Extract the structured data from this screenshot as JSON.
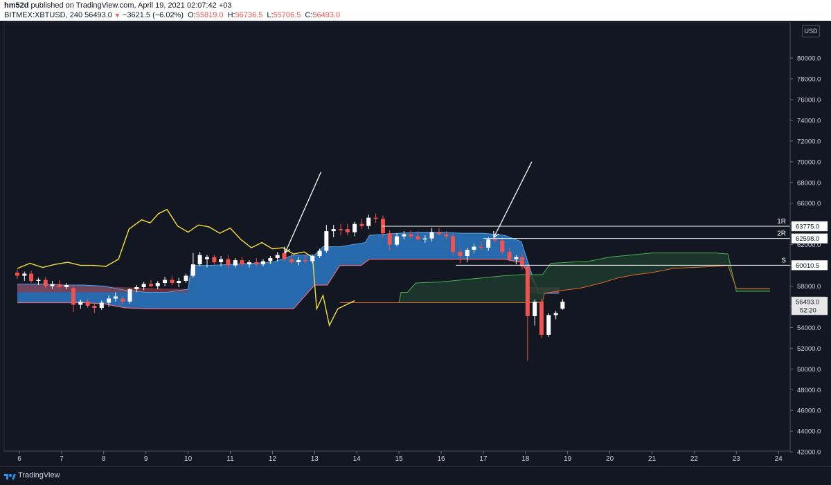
{
  "header": {
    "author": "hm52d",
    "published": " published on TradingView.com, April 19, 2021 02:07:42 +03",
    "symbol": "BITMEX:XBTUSD, 240",
    "last": "56493.0",
    "change": "−3621.5 (−6.02%)",
    "o_label": "O:",
    "o_val": "55819.0",
    "h_label": "H:",
    "h_val": "56736.5",
    "l_label": "L:",
    "l_val": "55706.5",
    "c_label": "C:",
    "c_val": "56493.0"
  },
  "footer": {
    "brand": "TradingView"
  },
  "axis": {
    "currency": "USD"
  },
  "colors": {
    "up": "#ffffff",
    "down": "#ef5350",
    "chikou": "#f5e040",
    "kumo_bull": "#2a78c4",
    "kumo_bear": "#8b3a44",
    "senkou_a": "#4caf50",
    "senkou_b": "#e0692a",
    "kijun_pink": "#e86a7a",
    "arrow": "#ffffff"
  },
  "chart_data": {
    "type": "candlestick",
    "y_ticks": [
      42000,
      44000,
      46000,
      48000,
      50000,
      52000,
      54000,
      56000,
      58000,
      60000,
      62000,
      64000,
      66000,
      68000,
      70000,
      72000,
      74000,
      76000,
      78000,
      80000
    ],
    "x_ticks": [
      {
        "label": "6",
        "day": 6
      },
      {
        "label": "7",
        "day": 7
      },
      {
        "label": "8",
        "day": 8
      },
      {
        "label": "9",
        "day": 9
      },
      {
        "label": "10",
        "day": 10
      },
      {
        "label": "11",
        "day": 11
      },
      {
        "label": "12",
        "day": 12
      },
      {
        "label": "13",
        "day": 13
      },
      {
        "label": "14",
        "day": 14
      },
      {
        "label": "15",
        "day": 15
      },
      {
        "label": "16",
        "day": 16
      },
      {
        "label": "17",
        "day": 17
      },
      {
        "label": "18",
        "day": 18
      },
      {
        "label": "19",
        "day": 19
      },
      {
        "label": "20",
        "day": 20
      },
      {
        "label": "21",
        "day": 21
      },
      {
        "label": "22",
        "day": 22
      },
      {
        "label": "23",
        "day": 23
      },
      {
        "label": "24",
        "day": 24
      }
    ],
    "price_labels": [
      {
        "text": "63775.0",
        "value": 63775,
        "tag": "1R",
        "x_start_day": 14.6
      },
      {
        "text": "62598.0",
        "value": 62598,
        "tag": "2R",
        "x_start_day": 17.0
      },
      {
        "text": "60010.5",
        "value": 60010.5,
        "tag": "S",
        "x_start_day": 16.35
      },
      {
        "text": "56493.0",
        "value": 56493,
        "tag": "",
        "x_start_day": null
      }
    ],
    "countdown": "52:20",
    "candles": [
      {
        "d": 5.95,
        "o": 59300,
        "h": 59600,
        "l": 58700,
        "c": 59000
      },
      {
        "d": 6.12,
        "o": 59000,
        "h": 59400,
        "l": 58500,
        "c": 59200
      },
      {
        "d": 6.28,
        "o": 59200,
        "h": 59500,
        "l": 58300,
        "c": 58500
      },
      {
        "d": 6.45,
        "o": 58500,
        "h": 58800,
        "l": 58100,
        "c": 58600
      },
      {
        "d": 6.62,
        "o": 58600,
        "h": 58900,
        "l": 57800,
        "c": 58000
      },
      {
        "d": 6.78,
        "o": 58000,
        "h": 58500,
        "l": 57700,
        "c": 58200
      },
      {
        "d": 6.95,
        "o": 58200,
        "h": 58600,
        "l": 57800,
        "c": 57900
      },
      {
        "d": 7.12,
        "o": 57900,
        "h": 58300,
        "l": 57700,
        "c": 58100
      },
      {
        "d": 7.28,
        "o": 57800,
        "h": 58100,
        "l": 55500,
        "c": 56200
      },
      {
        "d": 7.45,
        "o": 56200,
        "h": 56700,
        "l": 55800,
        "c": 56500
      },
      {
        "d": 7.62,
        "o": 56500,
        "h": 56800,
        "l": 55900,
        "c": 56100
      },
      {
        "d": 7.78,
        "o": 56100,
        "h": 56300,
        "l": 55400,
        "c": 55900
      },
      {
        "d": 7.95,
        "o": 55900,
        "h": 56600,
        "l": 55700,
        "c": 56400
      },
      {
        "d": 8.12,
        "o": 56400,
        "h": 57100,
        "l": 56000,
        "c": 56800
      },
      {
        "d": 8.28,
        "o": 56800,
        "h": 57400,
        "l": 56500,
        "c": 57000
      },
      {
        "d": 8.45,
        "o": 56800,
        "h": 57000,
        "l": 56200,
        "c": 56500
      },
      {
        "d": 8.62,
        "o": 56500,
        "h": 57800,
        "l": 56300,
        "c": 57700
      },
      {
        "d": 8.78,
        "o": 57700,
        "h": 58100,
        "l": 57400,
        "c": 57900
      },
      {
        "d": 8.95,
        "o": 57900,
        "h": 58400,
        "l": 57600,
        "c": 58200
      },
      {
        "d": 9.12,
        "o": 58200,
        "h": 58600,
        "l": 57900,
        "c": 58000
      },
      {
        "d": 9.28,
        "o": 58000,
        "h": 58500,
        "l": 57700,
        "c": 58300
      },
      {
        "d": 9.45,
        "o": 58300,
        "h": 58900,
        "l": 58000,
        "c": 58600
      },
      {
        "d": 9.62,
        "o": 58600,
        "h": 59000,
        "l": 58100,
        "c": 58300
      },
      {
        "d": 9.78,
        "o": 58300,
        "h": 58800,
        "l": 57900,
        "c": 58500
      },
      {
        "d": 9.95,
        "o": 58500,
        "h": 59200,
        "l": 58300,
        "c": 59000
      },
      {
        "d": 10.12,
        "o": 59000,
        "h": 61200,
        "l": 58800,
        "c": 60100
      },
      {
        "d": 10.28,
        "o": 60100,
        "h": 61300,
        "l": 59900,
        "c": 61000
      },
      {
        "d": 10.45,
        "o": 60600,
        "h": 61000,
        "l": 59800,
        "c": 60800
      },
      {
        "d": 10.62,
        "o": 60800,
        "h": 61000,
        "l": 60100,
        "c": 60300
      },
      {
        "d": 10.78,
        "o": 60300,
        "h": 60900,
        "l": 59900,
        "c": 60600
      },
      {
        "d": 10.95,
        "o": 60600,
        "h": 61000,
        "l": 59700,
        "c": 60000
      },
      {
        "d": 11.12,
        "o": 60000,
        "h": 60700,
        "l": 59800,
        "c": 60500
      },
      {
        "d": 11.28,
        "o": 60500,
        "h": 60800,
        "l": 59900,
        "c": 60100
      },
      {
        "d": 11.45,
        "o": 60100,
        "h": 60500,
        "l": 59800,
        "c": 60300
      },
      {
        "d": 11.62,
        "o": 60300,
        "h": 60700,
        "l": 59900,
        "c": 60100
      },
      {
        "d": 11.78,
        "o": 60100,
        "h": 60600,
        "l": 59900,
        "c": 60400
      },
      {
        "d": 11.95,
        "o": 60400,
        "h": 60900,
        "l": 60100,
        "c": 60700
      },
      {
        "d": 12.12,
        "o": 60700,
        "h": 61300,
        "l": 60400,
        "c": 61000
      },
      {
        "d": 12.28,
        "o": 61200,
        "h": 61500,
        "l": 60400,
        "c": 60600
      },
      {
        "d": 12.45,
        "o": 60600,
        "h": 61100,
        "l": 60100,
        "c": 60300
      },
      {
        "d": 12.62,
        "o": 60300,
        "h": 60800,
        "l": 60000,
        "c": 60500
      },
      {
        "d": 12.78,
        "o": 60500,
        "h": 61000,
        "l": 60200,
        "c": 60400
      },
      {
        "d": 12.95,
        "o": 60400,
        "h": 61000,
        "l": 60200,
        "c": 60900
      },
      {
        "d": 13.12,
        "o": 60900,
        "h": 61600,
        "l": 60700,
        "c": 61400
      },
      {
        "d": 13.28,
        "o": 61400,
        "h": 63900,
        "l": 61200,
        "c": 63300
      },
      {
        "d": 13.45,
        "o": 63300,
        "h": 63900,
        "l": 62700,
        "c": 63500
      },
      {
        "d": 13.62,
        "o": 63500,
        "h": 64000,
        "l": 62900,
        "c": 63400
      },
      {
        "d": 13.78,
        "o": 63500,
        "h": 64000,
        "l": 62900,
        "c": 63200
      },
      {
        "d": 13.95,
        "o": 63200,
        "h": 64200,
        "l": 62800,
        "c": 64000
      },
      {
        "d": 14.12,
        "o": 64000,
        "h": 64500,
        "l": 63500,
        "c": 63800
      },
      {
        "d": 14.28,
        "o": 63800,
        "h": 64900,
        "l": 63500,
        "c": 64600
      },
      {
        "d": 14.45,
        "o": 64600,
        "h": 65000,
        "l": 64100,
        "c": 64500
      },
      {
        "d": 14.62,
        "o": 64500,
        "h": 64800,
        "l": 62700,
        "c": 63100
      },
      {
        "d": 14.78,
        "o": 63100,
        "h": 63400,
        "l": 61400,
        "c": 62000
      },
      {
        "d": 14.95,
        "o": 62000,
        "h": 63100,
        "l": 61800,
        "c": 62800
      },
      {
        "d": 15.12,
        "o": 62800,
        "h": 63300,
        "l": 62500,
        "c": 63000
      },
      {
        "d": 15.28,
        "o": 63000,
        "h": 63400,
        "l": 62600,
        "c": 62800
      },
      {
        "d": 15.45,
        "o": 62800,
        "h": 63300,
        "l": 62300,
        "c": 62500
      },
      {
        "d": 15.62,
        "o": 62500,
        "h": 62900,
        "l": 62200,
        "c": 62600
      },
      {
        "d": 15.78,
        "o": 62600,
        "h": 63600,
        "l": 62300,
        "c": 63200
      },
      {
        "d": 15.95,
        "o": 63200,
        "h": 63600,
        "l": 62900,
        "c": 63000
      },
      {
        "d": 16.12,
        "o": 63000,
        "h": 63300,
        "l": 62500,
        "c": 62800
      },
      {
        "d": 16.28,
        "o": 62800,
        "h": 63100,
        "l": 61000,
        "c": 61300
      },
      {
        "d": 16.45,
        "o": 61300,
        "h": 61600,
        "l": 60200,
        "c": 60900
      },
      {
        "d": 16.62,
        "o": 60900,
        "h": 61700,
        "l": 60300,
        "c": 61500
      },
      {
        "d": 16.78,
        "o": 61500,
        "h": 62100,
        "l": 61200,
        "c": 61800
      },
      {
        "d": 16.95,
        "o": 61800,
        "h": 62300,
        "l": 61500,
        "c": 61700
      },
      {
        "d": 17.12,
        "o": 61700,
        "h": 62700,
        "l": 61400,
        "c": 62500
      },
      {
        "d": 17.28,
        "o": 62500,
        "h": 62900,
        "l": 62200,
        "c": 62400
      },
      {
        "d": 17.45,
        "o": 62400,
        "h": 62700,
        "l": 61000,
        "c": 61300
      },
      {
        "d": 17.62,
        "o": 61300,
        "h": 61700,
        "l": 60400,
        "c": 60600
      },
      {
        "d": 17.78,
        "o": 60600,
        "h": 61000,
        "l": 60100,
        "c": 60800
      },
      {
        "d": 17.92,
        "o": 60800,
        "h": 61200,
        "l": 59600,
        "c": 59900
      },
      {
        "d": 18.05,
        "o": 59900,
        "h": 60100,
        "l": 50800,
        "c": 55100
      },
      {
        "d": 18.22,
        "o": 55100,
        "h": 56700,
        "l": 54200,
        "c": 56500
      },
      {
        "d": 18.38,
        "o": 56500,
        "h": 56800,
        "l": 53000,
        "c": 53300
      },
      {
        "d": 18.55,
        "o": 53300,
        "h": 55400,
        "l": 53100,
        "c": 55200
      },
      {
        "d": 18.72,
        "o": 55200,
        "h": 55600,
        "l": 54800,
        "c": 55400
      },
      {
        "d": 18.88,
        "o": 55819,
        "h": 56736.5,
        "l": 55706.5,
        "c": 56493
      }
    ],
    "chikou": [
      [
        5.95,
        59700
      ],
      [
        6.25,
        60200
      ],
      [
        6.55,
        59800
      ],
      [
        6.85,
        60100
      ],
      [
        7.15,
        60300
      ],
      [
        7.45,
        60000
      ],
      [
        7.75,
        60000
      ],
      [
        8.05,
        59900
      ],
      [
        8.35,
        60600
      ],
      [
        8.6,
        63500
      ],
      [
        8.9,
        64400
      ],
      [
        9.1,
        64100
      ],
      [
        9.3,
        65000
      ],
      [
        9.5,
        65400
      ],
      [
        9.75,
        63800
      ],
      [
        10.0,
        63200
      ],
      [
        10.25,
        63900
      ],
      [
        10.5,
        63700
      ],
      [
        10.75,
        63100
      ],
      [
        11.0,
        63600
      ],
      [
        11.25,
        62500
      ],
      [
        11.5,
        61700
      ],
      [
        11.75,
        62200
      ],
      [
        12.0,
        61600
      ],
      [
        12.25,
        61700
      ],
      [
        12.5,
        61100
      ],
      [
        12.75,
        61300
      ],
      [
        12.95,
        60800
      ],
      [
        13.05,
        55800
      ],
      [
        13.2,
        57100
      ],
      [
        13.35,
        54200
      ],
      [
        13.55,
        55800
      ],
      [
        13.8,
        56300
      ],
      [
        13.95,
        56600
      ]
    ],
    "senkou_a": [
      [
        5.95,
        58200
      ],
      [
        6.5,
        58200
      ],
      [
        7.0,
        58100
      ],
      [
        7.5,
        58100
      ],
      [
        8.0,
        58000
      ],
      [
        8.5,
        57600
      ],
      [
        9.0,
        57400
      ],
      [
        9.5,
        57400
      ],
      [
        10.0,
        57700
      ],
      [
        10.08,
        60000
      ],
      [
        10.5,
        60000
      ],
      [
        11.0,
        60100
      ],
      [
        11.5,
        60200
      ],
      [
        12.0,
        60300
      ],
      [
        12.5,
        61000
      ],
      [
        13.0,
        61000
      ],
      [
        13.2,
        61800
      ],
      [
        13.6,
        61800
      ],
      [
        14.2,
        62200
      ],
      [
        14.3,
        62900
      ],
      [
        15.0,
        63100
      ],
      [
        15.5,
        63200
      ],
      [
        16.0,
        63200
      ],
      [
        16.5,
        63100
      ],
      [
        17.0,
        63100
      ],
      [
        17.5,
        62900
      ],
      [
        17.9,
        62300
      ],
      [
        18.3,
        57300
      ],
      [
        18.8,
        57300
      ]
    ],
    "senkou_b": [
      [
        5.95,
        56400
      ],
      [
        6.5,
        56400
      ],
      [
        7.0,
        56400
      ],
      [
        7.5,
        56400
      ],
      [
        8.0,
        56300
      ],
      [
        8.5,
        55900
      ],
      [
        9.0,
        55800
      ],
      [
        9.5,
        55800
      ],
      [
        10.0,
        55800
      ],
      [
        10.5,
        55800
      ],
      [
        11.0,
        55800
      ],
      [
        11.5,
        55800
      ],
      [
        12.0,
        55800
      ],
      [
        12.5,
        55800
      ],
      [
        13.0,
        58100
      ],
      [
        13.3,
        58100
      ],
      [
        13.6,
        60000
      ],
      [
        14.1,
        60000
      ],
      [
        14.3,
        60600
      ],
      [
        15.0,
        60600
      ],
      [
        15.5,
        60600
      ],
      [
        16.0,
        60600
      ],
      [
        16.5,
        60600
      ],
      [
        17.0,
        60600
      ],
      [
        17.5,
        60600
      ],
      [
        17.9,
        60300
      ],
      [
        18.3,
        57700
      ],
      [
        18.8,
        57700
      ]
    ],
    "future_a": [
      [
        13.6,
        56400
      ],
      [
        14.0,
        56400
      ],
      [
        14.5,
        56400
      ],
      [
        15.0,
        56400
      ],
      [
        15.05,
        57400
      ],
      [
        15.2,
        57400
      ],
      [
        15.4,
        58300
      ],
      [
        16.0,
        58400
      ],
      [
        16.5,
        58600
      ],
      [
        17.0,
        58800
      ],
      [
        17.5,
        59000
      ],
      [
        17.9,
        59100
      ],
      [
        18.4,
        59100
      ],
      [
        18.6,
        60200
      ],
      [
        19.0,
        60300
      ],
      [
        19.5,
        60400
      ],
      [
        20.0,
        60800
      ],
      [
        20.5,
        61000
      ],
      [
        21.0,
        61200
      ],
      [
        21.5,
        61200
      ],
      [
        22.0,
        61200
      ],
      [
        22.5,
        61200
      ],
      [
        22.8,
        61100
      ],
      [
        23.0,
        57500
      ],
      [
        23.8,
        57500
      ]
    ],
    "future_b": [
      [
        13.6,
        56400
      ],
      [
        14.0,
        56400
      ],
      [
        14.5,
        56400
      ],
      [
        15.0,
        56400
      ],
      [
        17.5,
        56400
      ],
      [
        18.2,
        56400
      ],
      [
        18.4,
        56400
      ],
      [
        18.45,
        57300
      ],
      [
        18.9,
        57600
      ],
      [
        19.3,
        57800
      ],
      [
        19.8,
        58300
      ],
      [
        20.2,
        58800
      ],
      [
        20.6,
        59100
      ],
      [
        21.0,
        59300
      ],
      [
        21.5,
        59700
      ],
      [
        22.0,
        59800
      ],
      [
        22.5,
        59900
      ],
      [
        22.8,
        60000
      ],
      [
        23.0,
        57800
      ],
      [
        23.8,
        57800
      ]
    ],
    "arrows": [
      {
        "from": [
          13.15,
          69000
        ],
        "to": [
          12.3,
          61200
        ]
      },
      {
        "from": [
          18.15,
          70000
        ],
        "to": [
          17.25,
          62700
        ]
      }
    ]
  }
}
